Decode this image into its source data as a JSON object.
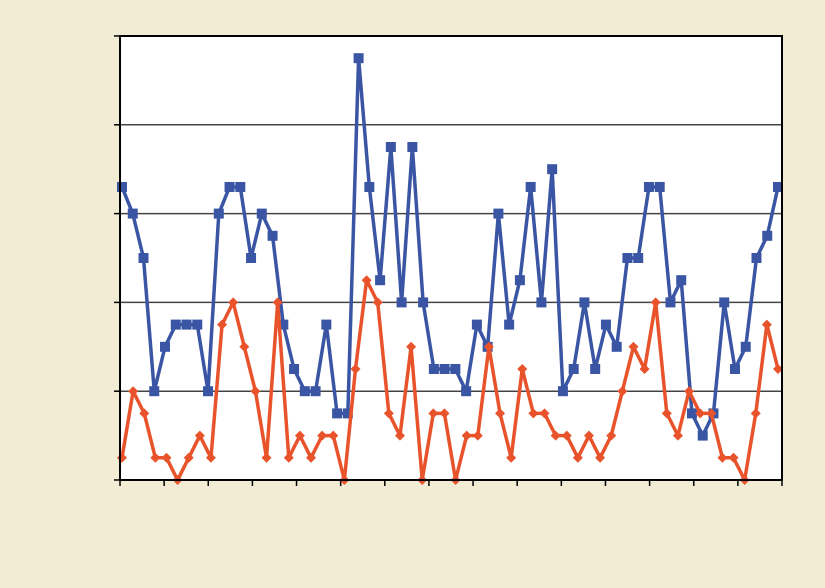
{
  "chart_data": {
    "type": "line",
    "ylim": [
      0,
      5
    ],
    "yticks": [
      0,
      1,
      2,
      3,
      4,
      5
    ],
    "grid": true,
    "series": [
      {
        "color": "#3a55a4",
        "marker": "square",
        "values": [
          3.3,
          3.0,
          2.5,
          1.0,
          1.5,
          1.75,
          1.75,
          1.75,
          1.0,
          3.0,
          3.3,
          3.3,
          2.5,
          3.0,
          2.75,
          1.75,
          1.25,
          1.0,
          1.0,
          1.75,
          0.75,
          0.75,
          4.75,
          3.3,
          2.25,
          3.75,
          2.0,
          3.75,
          2.0,
          1.25,
          1.25,
          1.25,
          1.0,
          1.75,
          1.5,
          3.0,
          1.75,
          2.25,
          3.3,
          2.0,
          3.5,
          1.0,
          1.25,
          2.0,
          1.25,
          1.75,
          1.5,
          2.5,
          2.5,
          3.3,
          3.3,
          2.0,
          2.25,
          0.75,
          0.5,
          0.75,
          2.0,
          1.25,
          1.5,
          2.5,
          2.75,
          3.3
        ]
      },
      {
        "color": "#e8532b",
        "marker": "diamond",
        "values": [
          0.25,
          1.0,
          0.75,
          0.25,
          0.25,
          0,
          0.25,
          0.5,
          0.25,
          1.75,
          2.0,
          1.5,
          1.0,
          0.25,
          2.0,
          0.25,
          0.5,
          0.25,
          0.5,
          0.5,
          0,
          1.25,
          2.25,
          2.0,
          0.75,
          0.5,
          1.5,
          0,
          0.75,
          0.75,
          0,
          0.5,
          0.5,
          1.5,
          0.75,
          0.25,
          1.25,
          0.75,
          0.75,
          0.5,
          0.5,
          0.25,
          0.5,
          0.25,
          0.5,
          1.0,
          1.5,
          1.25,
          2.0,
          0.75,
          0.5,
          1.0,
          0.75,
          0.75,
          0.25,
          0.25,
          0,
          0.75,
          1.75,
          1.25
        ]
      }
    ]
  }
}
